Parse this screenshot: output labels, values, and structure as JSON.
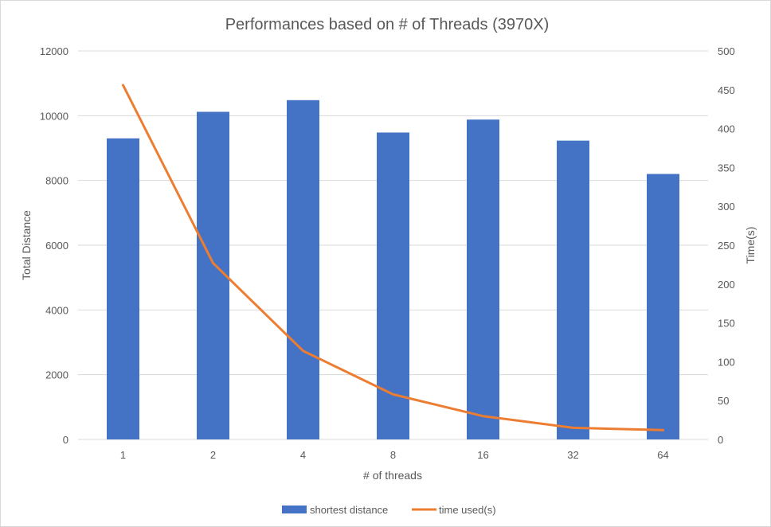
{
  "chart_data": {
    "type": "bar",
    "title": "Performances based on # of Threads (3970X)",
    "xlabel": "# of threads",
    "ylabel": "Total Distance",
    "y2label": "Time(s)",
    "categories": [
      "1",
      "2",
      "4",
      "8",
      "16",
      "32",
      "64"
    ],
    "ylim": [
      0,
      12000
    ],
    "y_ticks": [
      0,
      2000,
      4000,
      6000,
      8000,
      10000,
      12000
    ],
    "y2lim": [
      0,
      500
    ],
    "y2_ticks": [
      0,
      50,
      100,
      150,
      200,
      250,
      300,
      350,
      400,
      450,
      500
    ],
    "grid": true,
    "legend_position": "bottom",
    "series": [
      {
        "name": "shortest distance",
        "type": "bar",
        "axis": "left",
        "color": "#4472C4",
        "values": [
          9300,
          10120,
          10480,
          9480,
          9880,
          9230,
          8200
        ]
      },
      {
        "name": "time used(s)",
        "type": "line",
        "axis": "right",
        "color": "#ED7D31",
        "values": [
          456,
          227,
          114,
          58,
          30,
          15,
          12
        ]
      }
    ]
  }
}
